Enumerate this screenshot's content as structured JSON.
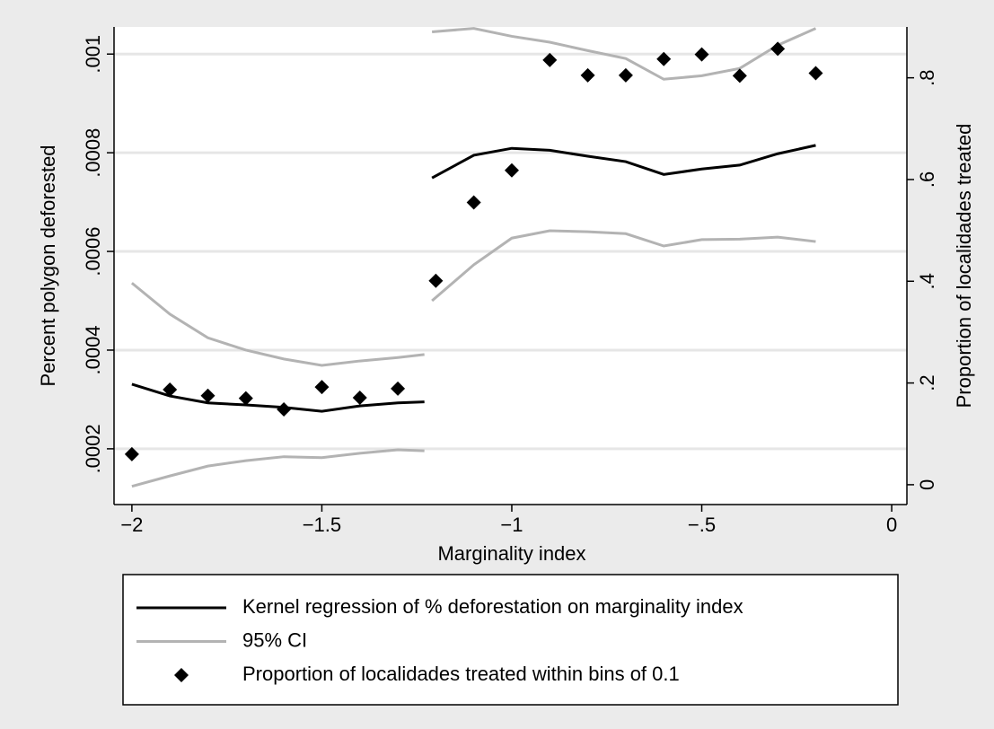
{
  "chart_data": {
    "type": "line",
    "xlabel": "Marginality index",
    "ylabel": "Percent polygon deforested",
    "y2label": "Proportion of localidades treated",
    "xlim": [
      -2.047,
      0.04
    ],
    "xticks": [
      {
        "value": -2,
        "label": "−2"
      },
      {
        "value": -1.5,
        "label": "−1.5"
      },
      {
        "value": -1,
        "label": "−1"
      },
      {
        "value": -0.5,
        "label": "−.5"
      },
      0
    ],
    "ylim": [
      8.7e-05,
      0.001055
    ],
    "yticks": [
      {
        "value": 0.0002,
        "label": ".0002"
      },
      {
        "value": 0.0004,
        "label": ".0004"
      },
      {
        "value": 0.0006,
        "label": ".0006"
      },
      {
        "value": 0.0008,
        "label": ".0008"
      },
      {
        "value": 0.001,
        "label": ".001"
      }
    ],
    "y2lim": [
      -0.039,
      0.9
    ],
    "y2ticks": [
      0,
      {
        "value": 0.2,
        "label": ".2"
      },
      {
        "value": 0.4,
        "label": ".4"
      },
      {
        "value": 0.6,
        "label": ".6"
      },
      {
        "value": 0.8,
        "label": ".8"
      }
    ],
    "grid": true,
    "series": [
      {
        "name": "Kernel regression of % deforestation on marginality index",
        "color": "#000000",
        "x": [
          -2,
          -1.9,
          -1.8,
          -1.7,
          -1.6,
          -1.5,
          -1.4,
          -1.3,
          -1.23,
          -1.22,
          -1.21,
          -1.1,
          -1.0,
          -0.9,
          -0.8,
          -0.7,
          -0.6,
          -0.5,
          -0.4,
          -0.3,
          -0.2
        ],
        "values": [
          0.000331,
          0.000307,
          0.000293,
          0.000289,
          0.000284,
          0.000276,
          0.000287,
          0.000293,
          0.000295,
          null,
          0.000749,
          0.000795,
          0.000809,
          0.000805,
          0.000793,
          0.000782,
          0.000756,
          0.000767,
          0.000775,
          0.000798,
          0.000815
        ]
      },
      {
        "name": "95% CI",
        "color": "#b3b3b3",
        "x": [
          -2,
          -1.9,
          -1.8,
          -1.7,
          -1.6,
          -1.5,
          -1.4,
          -1.3,
          -1.23,
          -1.22,
          -1.21,
          -1.1,
          -1.0,
          -0.9,
          -0.8,
          -0.7,
          -0.6,
          -0.5,
          -0.4,
          -0.3,
          -0.2
        ],
        "upper": [
          0.000536,
          0.000473,
          0.000425,
          0.0004,
          0.000382,
          0.000369,
          0.000378,
          0.000385,
          0.000391,
          null,
          0.001045,
          0.001052,
          0.001036,
          0.001024,
          0.001007,
          0.000991,
          0.000949,
          0.000956,
          0.000971,
          0.001018,
          0.001052
        ],
        "lower": [
          0.000124,
          0.000145,
          0.000165,
          0.000176,
          0.000184,
          0.000182,
          0.000191,
          0.000198,
          0.000196,
          null,
          0.0005,
          0.000573,
          0.000627,
          0.000642,
          0.00064,
          0.000636,
          0.000611,
          0.000624,
          0.000625,
          0.000629,
          0.00062
        ]
      },
      {
        "name": "Proportion of localidades treated within bins of 0.1",
        "color": "#000000",
        "axis": "y2",
        "marker": "diamond",
        "x": [
          -2,
          -1.9,
          -1.8,
          -1.7,
          -1.6,
          -1.5,
          -1.4,
          -1.3,
          -1.2,
          -1.1,
          -1.0,
          -0.9,
          -0.8,
          -0.7,
          -0.6,
          -0.5,
          -0.4,
          -0.3,
          -0.2
        ],
        "values": [
          0.06,
          0.187,
          0.175,
          0.17,
          0.148,
          0.192,
          0.171,
          0.189,
          0.401,
          0.555,
          0.618,
          0.835,
          0.805,
          0.805,
          0.837,
          0.846,
          0.804,
          0.857,
          0.809
        ]
      }
    ]
  }
}
